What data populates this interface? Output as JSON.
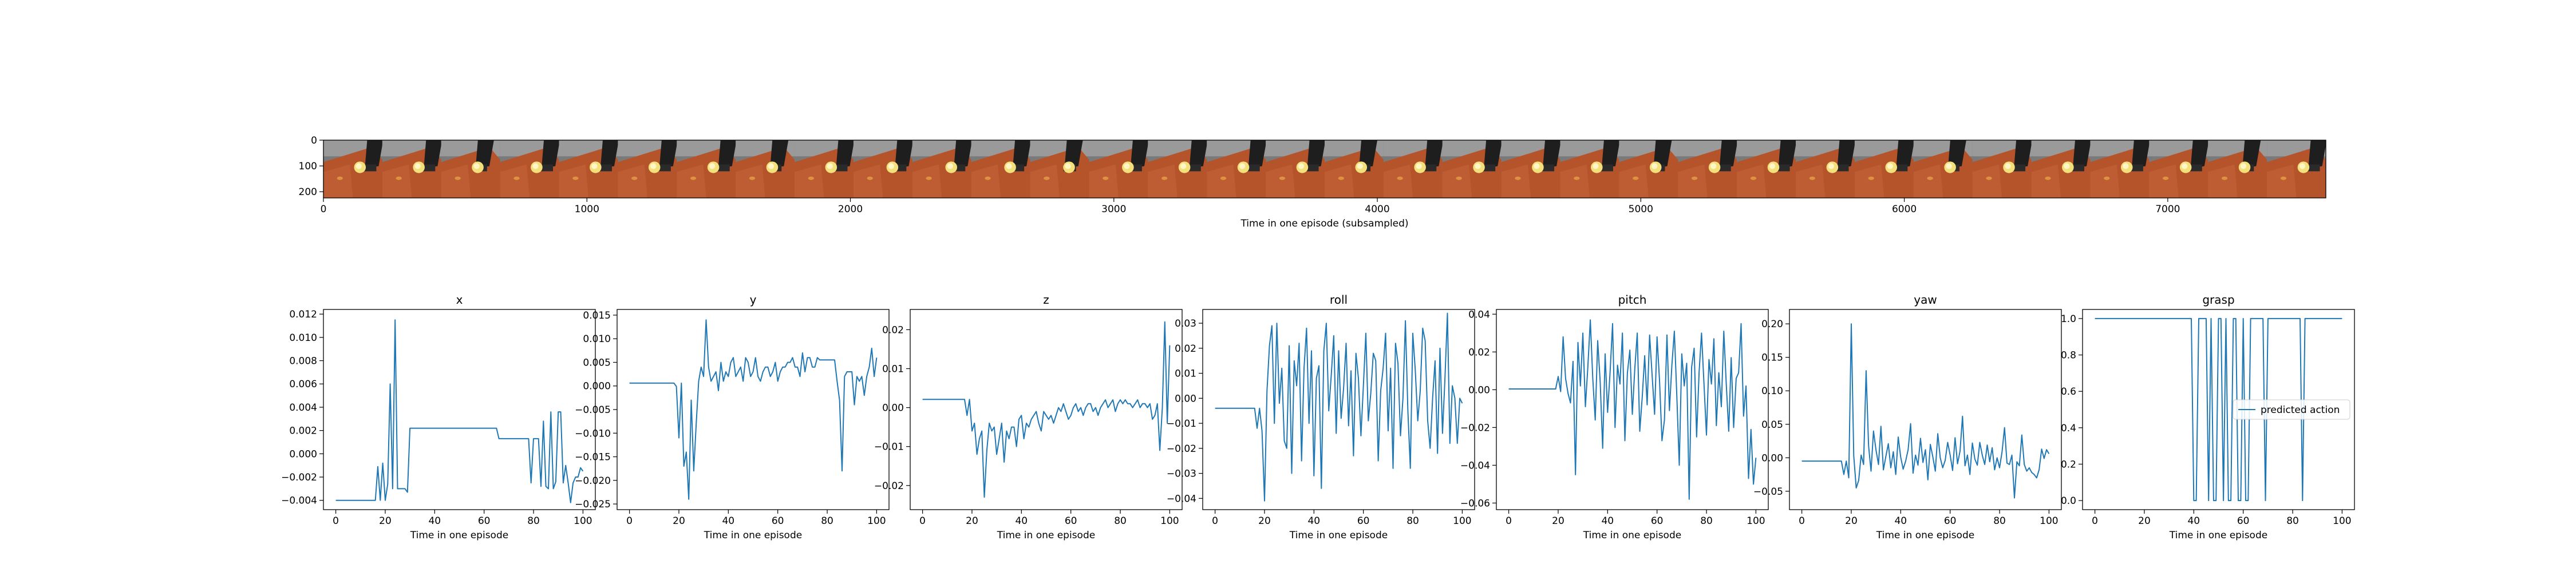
{
  "filmstrip": {
    "xlabel": "Time in one episode (subsampled)",
    "x_ticks": [
      0,
      1000,
      2000,
      3000,
      4000,
      5000,
      6000,
      7000
    ],
    "y_ticks": [
      0,
      100,
      200
    ],
    "xlim": [
      0,
      7600
    ],
    "ylim": [
      0,
      224
    ],
    "frame_count": 34
  },
  "chart_data": [
    {
      "type": "line",
      "title": "x",
      "xlabel": "Time in one episode",
      "ylabel": "",
      "xlim": [
        -5,
        105
      ],
      "ylim": [
        -0.0048,
        0.0124
      ],
      "x_ticks": [
        0,
        20,
        40,
        60,
        80,
        100
      ],
      "y_ticks": [
        -0.004,
        -0.002,
        0.0,
        0.002,
        0.004,
        0.006,
        0.008,
        0.01,
        0.012
      ],
      "y_tick_labels": [
        "−0.004",
        "−0.002",
        "0.000",
        "0.002",
        "0.004",
        "0.006",
        "0.008",
        "0.010",
        "0.012"
      ],
      "series": [
        {
          "values": [
            -0.004,
            -0.004,
            -0.004,
            -0.004,
            -0.004,
            -0.004,
            -0.004,
            -0.004,
            -0.004,
            -0.004,
            -0.004,
            -0.004,
            -0.004,
            -0.004,
            -0.004,
            -0.004,
            -0.004,
            -0.0011,
            -0.004,
            -0.0008,
            -0.004,
            -0.0026,
            0.006,
            -0.003,
            0.0115,
            -0.003,
            -0.003,
            -0.003,
            -0.003,
            -0.0033,
            0.0022,
            0.0022,
            0.0022,
            0.0022,
            0.0022,
            0.0022,
            0.0022,
            0.0022,
            0.0022,
            0.0022,
            0.0022,
            0.0022,
            0.0022,
            0.0022,
            0.0022,
            0.0022,
            0.0022,
            0.0022,
            0.0022,
            0.0022,
            0.0022,
            0.0022,
            0.0022,
            0.0022,
            0.0022,
            0.0022,
            0.0022,
            0.0022,
            0.0022,
            0.0022,
            0.0022,
            0.0022,
            0.0022,
            0.0022,
            0.0022,
            0.0022,
            0.0013,
            0.0013,
            0.0013,
            0.0013,
            0.0013,
            0.0013,
            0.0013,
            0.0013,
            0.0013,
            0.0013,
            0.0013,
            0.0013,
            0.0013,
            -0.0025,
            0.0013,
            0.0013,
            0.0013,
            -0.0028,
            0.0028,
            -0.0028,
            -0.003,
            0.0036,
            -0.003,
            -0.0024,
            0.0036,
            0.0036,
            -0.0025,
            -0.001,
            -0.0025,
            -0.0042,
            -0.0025,
            -0.002,
            -0.002,
            -0.0012,
            -0.0015
          ]
        }
      ]
    },
    {
      "type": "line",
      "title": "y",
      "xlabel": "Time in one episode",
      "ylabel": "",
      "xlim": [
        -5,
        105
      ],
      "ylim": [
        -0.0262,
        0.0162
      ],
      "x_ticks": [
        0,
        20,
        40,
        60,
        80,
        100
      ],
      "y_ticks": [
        -0.025,
        -0.02,
        -0.015,
        -0.01,
        -0.005,
        0.0,
        0.005,
        0.01,
        0.015
      ],
      "y_tick_labels": [
        "−0.025",
        "−0.020",
        "−0.015",
        "−0.010",
        "−0.005",
        "0.000",
        "0.005",
        "0.010",
        "0.015"
      ],
      "series": [
        {
          "values": [
            0.0006,
            0.0006,
            0.0006,
            0.0006,
            0.0006,
            0.0006,
            0.0006,
            0.0006,
            0.0006,
            0.0006,
            0.0006,
            0.0006,
            0.0006,
            0.0006,
            0.0006,
            0.0006,
            0.0006,
            0.0006,
            0.0006,
            -0.0001,
            -0.011,
            0.0006,
            -0.017,
            -0.014,
            -0.024,
            -0.003,
            -0.018,
            -0.008,
            0.001,
            0.004,
            0.002,
            0.014,
            0.004,
            0.001,
            0.002,
            0.003,
            -0.001,
            0.005,
            0.001,
            0.003,
            0.002,
            0.005,
            0.006,
            0.002,
            0.003,
            0.004,
            0.001,
            0.006,
            0.005,
            0.002,
            0.003,
            0.006,
            0.002,
            0.001,
            0.003,
            0.004,
            0.004,
            0.002,
            0.003,
            0.005,
            0.001,
            0.003,
            0.004,
            0.004,
            0.005,
            0.005,
            0.006,
            0.004,
            0.004,
            0.002,
            0.007,
            0.003,
            0.006,
            0.006,
            0.004,
            0.004,
            0.006,
            0.0055,
            0.0055,
            0.0055,
            0.0055,
            0.0055,
            0.0055,
            0.0055,
            0.001,
            -0.003,
            -0.018,
            0.002,
            0.003,
            0.003,
            0.003,
            -0.004,
            0.002,
            0.001,
            0.002,
            -0.002,
            0.002,
            0.004,
            0.008,
            0.002,
            0.006
          ]
        }
      ]
    },
    {
      "type": "line",
      "title": "z",
      "xlabel": "Time in one episode",
      "ylabel": "",
      "xlim": [
        -5,
        105
      ],
      "ylim": [
        -0.0262,
        0.0252
      ],
      "x_ticks": [
        0,
        20,
        40,
        60,
        80,
        100
      ],
      "y_ticks": [
        -0.02,
        -0.01,
        0.0,
        0.01,
        0.02
      ],
      "y_tick_labels": [
        "−0.02",
        "−0.01",
        "0.00",
        "0.01",
        "0.02"
      ],
      "series": [
        {
          "values": [
            0.0021,
            0.0021,
            0.0021,
            0.0021,
            0.0021,
            0.0021,
            0.0021,
            0.0021,
            0.0021,
            0.0021,
            0.0021,
            0.0021,
            0.0021,
            0.0021,
            0.0021,
            0.0021,
            0.0021,
            0.0021,
            -0.002,
            0.0021,
            -0.006,
            -0.004,
            -0.012,
            -0.008,
            -0.006,
            -0.023,
            -0.011,
            -0.004,
            -0.006,
            -0.005,
            -0.012,
            -0.008,
            -0.004,
            -0.014,
            -0.006,
            -0.008,
            -0.005,
            -0.005,
            -0.01,
            -0.003,
            -0.002,
            -0.008,
            -0.004,
            -0.005,
            -0.003,
            -0.002,
            -0.001,
            -0.004,
            -0.006,
            -0.001,
            -0.002,
            -0.003,
            -0.002,
            -0.004,
            -0.002,
            0.0,
            -0.001,
            0.001,
            -0.001,
            -0.003,
            -0.002,
            0.0,
            0.001,
            -0.001,
            0.0,
            -0.002,
            0.0,
            0.001,
            0.001,
            -0.001,
            0.0,
            -0.002,
            0.0,
            0.001,
            0.002,
            0.0,
            0.001,
            0.002,
            -0.001,
            0.001,
            0.002,
            0.001,
            0.002,
            0.001,
            0.001,
            0.0,
            0.001,
            0.002,
            0.0,
            0.001,
            0.001,
            0.0,
            0.001,
            -0.003,
            -0.002,
            0.001,
            -0.011,
            0.0,
            0.022,
            -0.004,
            0.016
          ]
        }
      ]
    },
    {
      "type": "line",
      "title": "roll",
      "xlabel": "Time in one episode",
      "ylabel": "",
      "xlim": [
        -5,
        105
      ],
      "ylim": [
        -0.0445,
        0.0355
      ],
      "x_ticks": [
        0,
        20,
        40,
        60,
        80,
        100
      ],
      "y_ticks": [
        -0.04,
        -0.03,
        -0.02,
        -0.01,
        0.0,
        0.01,
        0.02,
        0.03
      ],
      "y_tick_labels": [
        "−0.04",
        "−0.03",
        "−0.02",
        "−0.01",
        "0.00",
        "0.01",
        "0.02",
        "0.03"
      ],
      "series": [
        {
          "values": [
            -0.004,
            -0.004,
            -0.004,
            -0.004,
            -0.004,
            -0.004,
            -0.004,
            -0.004,
            -0.004,
            -0.004,
            -0.004,
            -0.004,
            -0.004,
            -0.004,
            -0.004,
            -0.004,
            -0.004,
            -0.012,
            -0.004,
            -0.013,
            -0.041,
            0.003,
            0.021,
            0.029,
            -0.01,
            0.03,
            -0.002,
            0.012,
            -0.017,
            -0.02,
            0.021,
            -0.03,
            0.015,
            0.005,
            0.022,
            -0.025,
            0.012,
            0.028,
            -0.01,
            0.019,
            -0.031,
            0.008,
            0.013,
            -0.036,
            0.019,
            0.03,
            -0.005,
            0.009,
            0.025,
            -0.014,
            0.019,
            -0.008,
            0.004,
            0.022,
            -0.011,
            0.011,
            -0.023,
            0.018,
            0.008,
            -0.015,
            0.005,
            0.026,
            -0.009,
            0.002,
            0.018,
            0.015,
            -0.025,
            0.003,
            0.012,
            0.026,
            -0.013,
            0.012,
            -0.028,
            0.022,
            0.014,
            -0.015,
            0.0,
            0.031,
            -0.005,
            -0.028,
            0.026,
            0.011,
            -0.009,
            0.003,
            0.028,
            0.023,
            -0.009,
            -0.02,
            0.0,
            0.015,
            -0.022,
            0.02,
            -0.014,
            0.008,
            0.034,
            -0.018,
            0.005,
            0.0,
            -0.018,
            0.0,
            -0.002
          ]
        }
      ]
    },
    {
      "type": "line",
      "title": "pitch",
      "xlabel": "Time in one episode",
      "ylabel": "",
      "xlim": [
        -5,
        105
      ],
      "ylim": [
        -0.0635,
        0.0425
      ],
      "x_ticks": [
        0,
        20,
        40,
        60,
        80,
        100
      ],
      "y_ticks": [
        -0.06,
        -0.04,
        -0.02,
        0.0,
        0.02,
        0.04
      ],
      "y_tick_labels": [
        "−0.06",
        "−0.04",
        "−0.02",
        "0.00",
        "0.02",
        "0.04"
      ],
      "series": [
        {
          "values": [
            0.0004,
            0.0004,
            0.0004,
            0.0004,
            0.0004,
            0.0004,
            0.0004,
            0.0004,
            0.0004,
            0.0004,
            0.0004,
            0.0004,
            0.0004,
            0.0004,
            0.0004,
            0.0004,
            0.0004,
            0.0004,
            0.0004,
            0.0004,
            0.007,
            -0.001,
            0.028,
            0.006,
            -0.002,
            -0.007,
            0.015,
            -0.045,
            0.025,
            0.002,
            0.03,
            -0.009,
            0.012,
            0.037,
            0.006,
            -0.016,
            0.026,
            0.004,
            -0.031,
            0.019,
            -0.012,
            0.009,
            0.035,
            -0.02,
            0.013,
            0.003,
            0.03,
            -0.027,
            0.009,
            0.021,
            -0.013,
            0.011,
            0.03,
            -0.022,
            -0.004,
            0.018,
            -0.008,
            0.029,
            0.008,
            -0.013,
            0.028,
            0.005,
            -0.027,
            -0.016,
            0.029,
            -0.011,
            0.013,
            0.031,
            -0.003,
            -0.04,
            0.019,
            0.002,
            0.014,
            -0.058,
            0.012,
            0.022,
            -0.025,
            0.009,
            0.03,
            0.003,
            -0.024,
            0.016,
            0.003,
            0.027,
            -0.019,
            0.009,
            -0.009,
            0.031,
            0.003,
            -0.022,
            0.017,
            -0.02,
            0.006,
            0.009,
            0.035,
            -0.014,
            0.002,
            -0.047,
            -0.021,
            -0.05,
            -0.036
          ]
        }
      ]
    },
    {
      "type": "line",
      "title": "yaw",
      "xlabel": "Time in one episode",
      "ylabel": "",
      "xlim": [
        -5,
        105
      ],
      "ylim": [
        -0.0775,
        0.2215
      ],
      "x_ticks": [
        0,
        20,
        40,
        60,
        80,
        100
      ],
      "y_ticks": [
        -0.05,
        0.0,
        0.05,
        0.1,
        0.15,
        0.2
      ],
      "y_tick_labels": [
        "−0.05",
        "0.00",
        "0.05",
        "0.10",
        "0.15",
        "0.20"
      ],
      "series": [
        {
          "values": [
            -0.005,
            -0.005,
            -0.005,
            -0.005,
            -0.005,
            -0.005,
            -0.005,
            -0.005,
            -0.005,
            -0.005,
            -0.005,
            -0.005,
            -0.005,
            -0.005,
            -0.005,
            -0.005,
            -0.005,
            -0.025,
            -0.005,
            -0.03,
            0.2,
            0.003,
            -0.045,
            -0.034,
            0.004,
            -0.01,
            0.13,
            0.018,
            -0.02,
            0.04,
            0.012,
            -0.01,
            0.047,
            -0.018,
            0.002,
            0.021,
            -0.015,
            0.009,
            -0.025,
            0.031,
            0.001,
            -0.017,
            -0.005,
            0.012,
            0.051,
            -0.023,
            0.004,
            -0.011,
            0.029,
            -0.007,
            0.012,
            -0.033,
            0.02,
            0.001,
            -0.02,
            0.036,
            0.0,
            -0.015,
            -0.004,
            0.023,
            0.004,
            -0.019,
            0.03,
            -0.009,
            0.01,
            0.062,
            -0.012,
            0.004,
            -0.025,
            0.022,
            -0.002,
            -0.011,
            0.023,
            0.004,
            -0.01,
            0.019,
            -0.006,
            0.015,
            -0.018,
            0.0,
            -0.015,
            0.009,
            0.045,
            -0.008,
            -0.01,
            0.004,
            -0.06,
            -0.006,
            -0.012,
            0.034,
            -0.01,
            -0.02,
            -0.015,
            -0.022,
            -0.025,
            -0.03,
            -0.018,
            0.013,
            -0.001,
            0.012,
            0.006
          ]
        }
      ]
    },
    {
      "type": "line",
      "title": "grasp",
      "xlabel": "Time in one episode",
      "ylabel": "",
      "xlim": [
        -5,
        105
      ],
      "ylim": [
        -0.05,
        1.05
      ],
      "x_ticks": [
        0,
        20,
        40,
        60,
        80,
        100
      ],
      "y_ticks": [
        0.0,
        0.2,
        0.4,
        0.6,
        0.8,
        1.0
      ],
      "y_tick_labels": [
        "0.0",
        "0.2",
        "0.4",
        "0.6",
        "0.8",
        "1.0"
      ],
      "legend": {
        "label": "predicted action",
        "placement": "center-right"
      },
      "series": [
        {
          "name": "predicted action",
          "values": [
            1,
            1,
            1,
            1,
            1,
            1,
            1,
            1,
            1,
            1,
            1,
            1,
            1,
            1,
            1,
            1,
            1,
            1,
            1,
            1,
            1,
            1,
            1,
            1,
            1,
            1,
            1,
            1,
            1,
            1,
            1,
            1,
            1,
            1,
            1,
            1,
            1,
            1,
            1,
            1,
            0,
            0,
            1,
            1,
            1,
            1,
            0,
            1,
            0,
            0,
            1,
            1,
            0,
            1,
            0,
            0,
            1,
            1,
            0,
            0,
            1,
            0,
            0,
            1,
            1,
            1,
            1,
            1,
            1,
            0,
            1,
            1,
            1,
            1,
            1,
            1,
            1,
            1,
            1,
            1,
            1,
            1,
            1,
            1,
            0,
            1,
            1,
            1,
            1,
            1,
            1,
            1,
            1,
            1,
            1,
            1,
            1,
            1,
            1,
            1,
            1
          ]
        }
      ]
    }
  ]
}
